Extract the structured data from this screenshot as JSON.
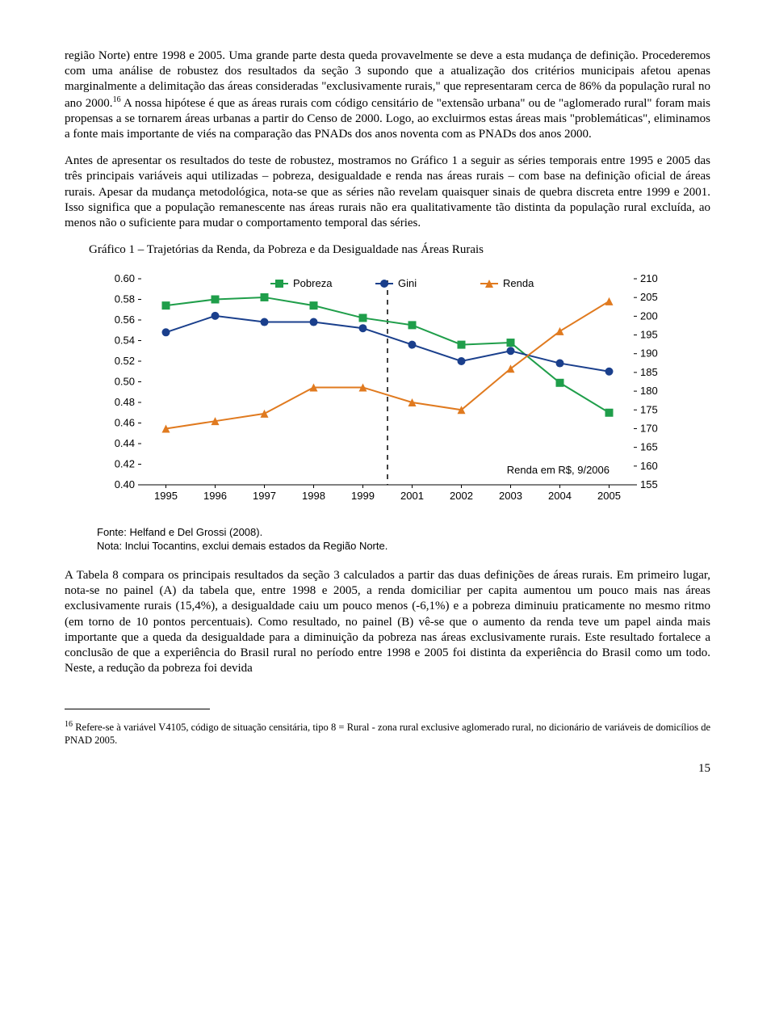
{
  "para1": "região Norte) entre 1998 e 2005. Uma grande parte desta queda provavelmente se deve a esta mudança de definição. Procederemos com uma análise de robustez dos resultados da seção 3 supondo que a atualização dos critérios municipais afetou apenas marginalmente a delimitação das áreas consideradas \"exclusivamente rurais,\" que representaram cerca de 86% da população rural no ano 2000.",
  "para1_after_sup": " A nossa hipótese é que as áreas rurais com código censitário de \"extensão urbana\" ou de \"aglomerado rural\" foram mais propensas a se tornarem áreas urbanas a partir do Censo de 2000. Logo, ao excluirmos estas áreas mais \"problemáticas\", eliminamos a fonte mais importante de viés na comparação das PNADs dos anos noventa com as PNADs dos anos 2000.",
  "sup16": "16",
  "para2": "Antes de apresentar os resultados do teste de robustez, mostramos no Gráfico 1 a seguir as séries temporais entre 1995 e 2005 das três principais variáveis aqui utilizadas – pobreza, desigualdade e renda nas áreas rurais – com base na definição oficial de áreas rurais. Apesar da mudança metodológica, nota-se que as séries não revelam quaisquer sinais de quebra discreta entre 1999 e 2001. Isso significa que a população remanescente nas áreas rurais não era qualitativamente tão distinta da população rural excluída, ao menos não o suficiente para mudar o comportamento temporal das séries.",
  "chart_title": "Gráfico 1 – Trajetórias da Renda, da Pobreza e da Desigualdade nas Áreas Rurais",
  "chart": {
    "type": "line",
    "legend": [
      {
        "label": "Pobreza",
        "marker": "square",
        "color": "#1f9e4a"
      },
      {
        "label": "Gini",
        "marker": "circle",
        "color": "#1a3f8c"
      },
      {
        "label": "Renda",
        "marker": "triangle",
        "color": "#e07a1f"
      }
    ],
    "x_categories": [
      "1995",
      "1996",
      "1997",
      "1998",
      "1999",
      "2001",
      "2002",
      "2003",
      "2004",
      "2005"
    ],
    "left_axis": {
      "min": 0.4,
      "max": 0.6,
      "ticks": [
        0.4,
        0.42,
        0.44,
        0.46,
        0.48,
        0.5,
        0.52,
        0.54,
        0.56,
        0.58,
        0.6
      ]
    },
    "right_axis": {
      "min": 155,
      "max": 210,
      "ticks": [
        155,
        160,
        165,
        170,
        175,
        180,
        185,
        190,
        195,
        200,
        205,
        210
      ]
    },
    "series": {
      "pobreza": [
        0.574,
        0.58,
        0.582,
        0.574,
        0.562,
        0.555,
        0.536,
        0.538,
        0.499,
        0.47
      ],
      "gini": [
        0.548,
        0.564,
        0.558,
        0.558,
        0.552,
        0.536,
        0.52,
        0.53,
        0.518,
        0.51
      ],
      "renda": [
        170,
        172,
        174,
        181,
        181,
        177,
        175,
        186,
        196,
        204
      ]
    },
    "annotation": "Renda em R$, 9/2006",
    "divider_between_index": 4,
    "colors": {
      "pobreza": "#1f9e4a",
      "gini": "#1a3f8c",
      "renda": "#e07a1f",
      "axis": "#000000",
      "divider": "#000000",
      "background": "#ffffff"
    },
    "line_width": 2,
    "marker_size": 5,
    "font_family": "Arial",
    "label_fontsize": 13
  },
  "chart_source": "Fonte: Helfand e Del Grossi (2008).",
  "chart_note": "Nota: Inclui Tocantins, exclui demais estados da Região Norte.",
  "para3": "A Tabela 8 compara os principais resultados da seção 3 calculados a partir das duas definições de áreas rurais. Em primeiro lugar, nota-se no painel (A) da tabela que, entre 1998 e 2005, a renda domiciliar per capita aumentou um pouco mais nas áreas exclusivamente rurais (15,4%), a desigualdade caiu um pouco menos (-6,1%) e a pobreza diminuiu praticamente no mesmo ritmo (em torno de 10 pontos percentuais). Como resultado, no painel (B) vê-se que o aumento da renda teve um papel ainda mais importante que a queda da desigualdade para a diminuição da pobreza nas áreas exclusivamente rurais. Este resultado fortalece a conclusão de que a experiência do Brasil rural no período entre 1998 e 2005 foi distinta da experiência do Brasil como um todo.  Neste, a redução da pobreza foi devida",
  "footnote_num": "16",
  "footnote_text": " Refere-se à variável V4105, código de situação censitária, tipo 8 = Rural - zona rural exclusive aglomerado rural, no dicionário de variáveis de domicílios de PNAD 2005.",
  "page_number": "15"
}
